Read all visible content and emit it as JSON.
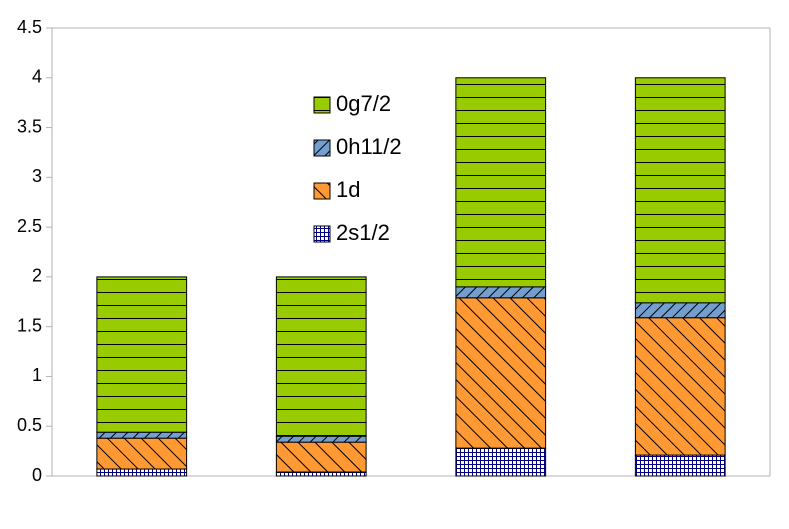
{
  "chart_data": {
    "type": "stacked-bar",
    "categories": [
      null,
      null,
      null,
      null
    ],
    "series": [
      {
        "name": "2s1/2",
        "color": "#000080",
        "hatch": "grid",
        "values": [
          0.07,
          0.04,
          0.28,
          0.21
        ]
      },
      {
        "name": "1d",
        "color": "#ff9933",
        "hatch": "back-diagonal",
        "values": [
          0.31,
          0.3,
          1.51,
          1.38
        ]
      },
      {
        "name": "0h11/2",
        "color": "#729fcf",
        "hatch": "diagonal",
        "values": [
          0.06,
          0.06,
          0.11,
          0.15
        ]
      },
      {
        "name": "0g7/2",
        "color": "#99cc00",
        "hatch": "horizontal",
        "values": [
          1.56,
          1.6,
          2.1,
          2.26
        ]
      }
    ],
    "ylim": [
      0,
      4.5
    ],
    "yticks": [
      0,
      0.5,
      1,
      1.5,
      2,
      2.5,
      3,
      3.5,
      4,
      4.5
    ],
    "legend": "upper-center"
  }
}
